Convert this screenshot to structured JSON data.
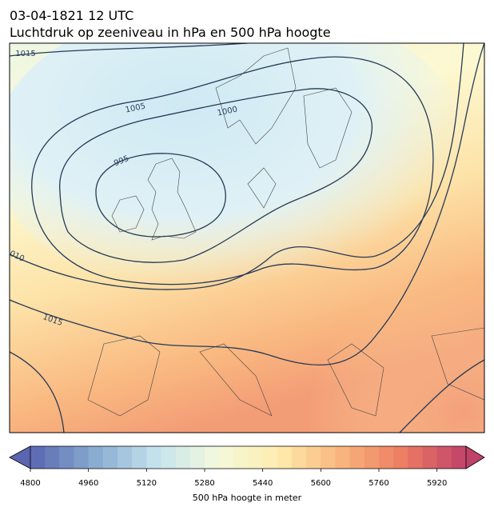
{
  "header": {
    "date": "03-04-1821 12 UTC",
    "title": "Luchtdruk op zeeniveau in hPa en 500 hPa hoogte"
  },
  "map": {
    "contour_labels": [
      "1015",
      "1005",
      "1000",
      "995",
      "010",
      "1015"
    ]
  },
  "colorbar": {
    "label": "500 hPa hoogte in meter",
    "lim": [
      4800,
      6000
    ],
    "step": 40,
    "ticks": [
      4800,
      4960,
      5120,
      5280,
      5440,
      5600,
      5760,
      5920
    ],
    "colors": [
      "#5a66b0",
      "#86a9cf",
      "#c3e2ee",
      "#f3f9dc",
      "#fdecad",
      "#f9b47c",
      "#ec7c62",
      "#c0416a"
    ]
  }
}
